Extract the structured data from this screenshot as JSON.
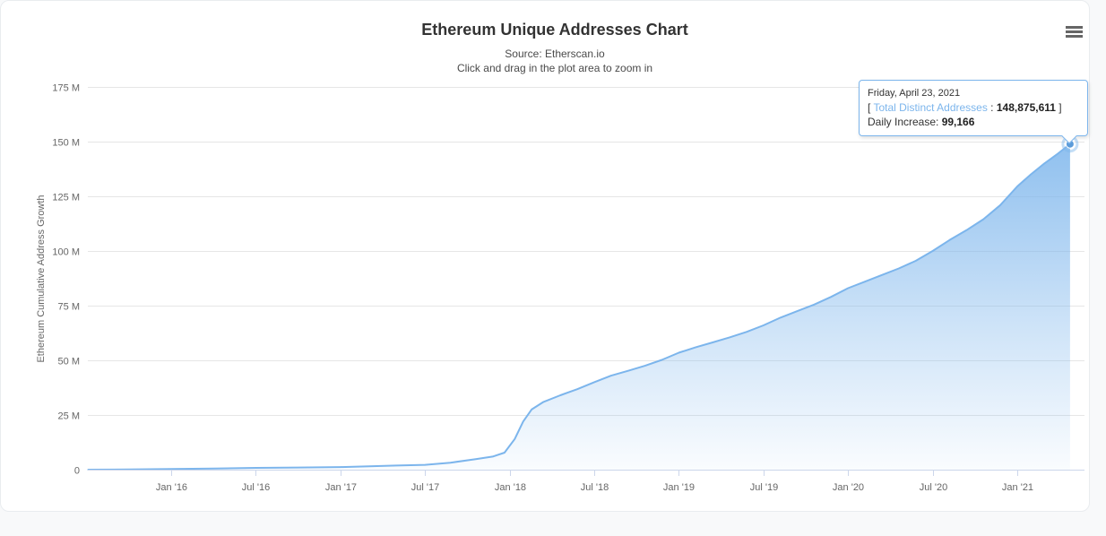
{
  "page": {
    "background": "#f8f9fa",
    "card_background": "#ffffff"
  },
  "header": {
    "title": "Ethereum Unique Addresses Chart",
    "subtitle_source": "Source: Etherscan.io",
    "subtitle_hint": "Click and drag in the plot area to zoom in"
  },
  "tooltip": {
    "date": "Friday, April 23, 2021",
    "open_bracket": "[ ",
    "series_label": "Total Distinct Addresses",
    "separator": " : ",
    "total_value": "148,875,611",
    "close_bracket": " ]",
    "daily_label": "Daily Increase: ",
    "daily_value": "99,166"
  },
  "chart_data": {
    "type": "area",
    "title": "Ethereum Unique Addresses Chart",
    "subtitle": "Source: Etherscan.io",
    "xlabel": "",
    "ylabel": "Ethereum Cumulative Address Growth",
    "ylim": [
      0,
      175
    ],
    "grid": true,
    "legend": "none",
    "x_unit": "year (fractional)",
    "y_unit": "million addresses",
    "yticks": [
      {
        "value": 0,
        "label": "0"
      },
      {
        "value": 25,
        "label": "25 M"
      },
      {
        "value": 50,
        "label": "50 M"
      },
      {
        "value": 75,
        "label": "75 M"
      },
      {
        "value": 100,
        "label": "100 M"
      },
      {
        "value": 125,
        "label": "125 M"
      },
      {
        "value": 150,
        "label": "150 M"
      },
      {
        "value": 175,
        "label": "175 M"
      }
    ],
    "xticks": [
      {
        "t": 2016.0,
        "label": "Jan '16"
      },
      {
        "t": 2016.5,
        "label": "Jul '16"
      },
      {
        "t": 2017.0,
        "label": "Jan '17"
      },
      {
        "t": 2017.5,
        "label": "Jul '17"
      },
      {
        "t": 2018.0,
        "label": "Jan '18"
      },
      {
        "t": 2018.5,
        "label": "Jul '18"
      },
      {
        "t": 2019.0,
        "label": "Jan '19"
      },
      {
        "t": 2019.5,
        "label": "Jul '19"
      },
      {
        "t": 2020.0,
        "label": "Jan '20"
      },
      {
        "t": 2020.5,
        "label": "Jul '20"
      },
      {
        "t": 2021.0,
        "label": "Jan '21"
      }
    ],
    "series": [
      {
        "name": "Total Distinct Addresses",
        "points": [
          [
            2015.51,
            0.02
          ],
          [
            2015.75,
            0.1
          ],
          [
            2016.0,
            0.3
          ],
          [
            2016.25,
            0.5
          ],
          [
            2016.5,
            0.8
          ],
          [
            2016.75,
            1.0
          ],
          [
            2017.0,
            1.2
          ],
          [
            2017.17,
            1.5
          ],
          [
            2017.33,
            1.9
          ],
          [
            2017.5,
            2.2
          ],
          [
            2017.65,
            3.2
          ],
          [
            2017.8,
            4.8
          ],
          [
            2017.9,
            6.0
          ],
          [
            2017.97,
            7.8
          ],
          [
            2018.03,
            14.0
          ],
          [
            2018.08,
            22.0
          ],
          [
            2018.13,
            27.5
          ],
          [
            2018.2,
            31.0
          ],
          [
            2018.3,
            34.0
          ],
          [
            2018.4,
            36.8
          ],
          [
            2018.5,
            40.0
          ],
          [
            2018.6,
            43.0
          ],
          [
            2018.7,
            45.2
          ],
          [
            2018.8,
            47.5
          ],
          [
            2018.9,
            50.2
          ],
          [
            2019.0,
            53.5
          ],
          [
            2019.1,
            56.0
          ],
          [
            2019.2,
            58.2
          ],
          [
            2019.3,
            60.5
          ],
          [
            2019.4,
            63.0
          ],
          [
            2019.5,
            66.0
          ],
          [
            2019.6,
            69.5
          ],
          [
            2019.7,
            72.5
          ],
          [
            2019.8,
            75.5
          ],
          [
            2019.9,
            79.0
          ],
          [
            2020.0,
            83.0
          ],
          [
            2020.1,
            86.0
          ],
          [
            2020.2,
            89.0
          ],
          [
            2020.3,
            92.0
          ],
          [
            2020.4,
            95.5
          ],
          [
            2020.5,
            100.0
          ],
          [
            2020.6,
            105.0
          ],
          [
            2020.7,
            109.5
          ],
          [
            2020.8,
            114.5
          ],
          [
            2020.9,
            121.0
          ],
          [
            2021.0,
            129.5
          ],
          [
            2021.08,
            135.0
          ],
          [
            2021.16,
            140.0
          ],
          [
            2021.24,
            144.5
          ],
          [
            2021.312,
            148.876
          ]
        ]
      }
    ],
    "highlighted_point": {
      "date": "Friday, April 23, 2021",
      "total_distinct_addresses": 148875611,
      "daily_increase": 99166
    },
    "style": {
      "line_color": "#7cb5ec",
      "marker_color": "#5b9bd9",
      "halo_color": "rgba(124,181,236,0.45)",
      "grid_color": "#e6e6e6",
      "axis_color": "#ccd6eb",
      "label_color": "#666666"
    }
  }
}
